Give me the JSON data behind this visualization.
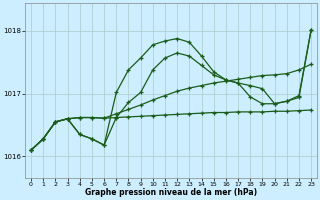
{
  "xlabel": "Graphe pression niveau de la mer (hPa)",
  "ylim": [
    1015.65,
    1018.45
  ],
  "xlim": [
    -0.5,
    23.5
  ],
  "yticks": [
    1016,
    1017,
    1018
  ],
  "xticks": [
    0,
    1,
    2,
    3,
    4,
    5,
    6,
    7,
    8,
    9,
    10,
    11,
    12,
    13,
    14,
    15,
    16,
    17,
    18,
    19,
    20,
    21,
    22,
    23
  ],
  "bg_color": "#cceeff",
  "grid_color": "#aacccc",
  "line_color": "#1a5c1a",
  "series": [
    {
      "x": [
        0,
        1,
        2,
        3,
        4,
        5,
        6,
        7,
        8,
        9,
        10,
        11,
        12,
        13,
        14,
        15,
        16,
        17,
        18,
        19,
        20,
        21,
        22,
        23
      ],
      "y": [
        1016.1,
        1016.28,
        1016.55,
        1016.6,
        1016.62,
        1016.62,
        1016.61,
        1016.62,
        1016.63,
        1016.64,
        1016.65,
        1016.66,
        1016.67,
        1016.68,
        1016.69,
        1016.7,
        1016.7,
        1016.71,
        1016.71,
        1016.71,
        1016.72,
        1016.72,
        1016.73,
        1016.74
      ]
    },
    {
      "x": [
        0,
        1,
        2,
        3,
        4,
        5,
        6,
        7,
        8,
        9,
        10,
        11,
        12,
        13,
        14,
        15,
        16,
        17,
        18,
        19,
        20,
        21,
        22,
        23
      ],
      "y": [
        1016.1,
        1016.28,
        1016.55,
        1016.6,
        1016.62,
        1016.62,
        1016.61,
        1016.68,
        1016.75,
        1016.82,
        1016.9,
        1016.97,
        1017.04,
        1017.09,
        1017.13,
        1017.17,
        1017.2,
        1017.23,
        1017.26,
        1017.29,
        1017.3,
        1017.32,
        1017.38,
        1017.47
      ]
    },
    {
      "x": [
        0,
        1,
        2,
        3,
        4,
        5,
        6,
        7,
        8,
        9,
        10,
        11,
        12,
        13,
        14,
        15,
        16,
        17,
        18,
        19,
        20,
        21,
        22,
        23
      ],
      "y": [
        1016.1,
        1016.28,
        1016.55,
        1016.6,
        1016.35,
        1016.28,
        1016.18,
        1016.62,
        1016.86,
        1017.02,
        1017.38,
        1017.57,
        1017.65,
        1017.6,
        1017.45,
        1017.3,
        1017.22,
        1017.17,
        1017.13,
        1017.08,
        1016.84,
        1016.88,
        1016.94,
        1018.02
      ]
    },
    {
      "x": [
        0,
        1,
        2,
        3,
        4,
        5,
        6,
        7,
        8,
        9,
        10,
        11,
        12,
        13,
        14,
        15,
        16,
        17,
        18,
        19,
        20,
        21,
        22,
        23
      ],
      "y": [
        1016.1,
        1016.28,
        1016.55,
        1016.6,
        1016.35,
        1016.28,
        1016.18,
        1017.02,
        1017.38,
        1017.57,
        1017.78,
        1017.84,
        1017.88,
        1017.82,
        1017.6,
        1017.35,
        1017.22,
        1017.17,
        1016.95,
        1016.84,
        1016.84,
        1016.88,
        1016.97,
        1018.02
      ]
    }
  ]
}
